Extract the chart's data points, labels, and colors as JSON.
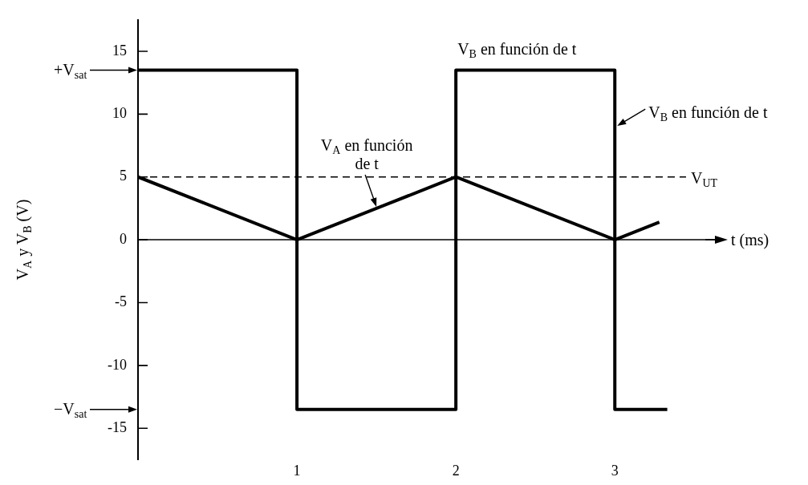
{
  "chart_data": {
    "type": "line",
    "xlabel": "t (ms)",
    "ylabel": "V$_{A}$ y V$_{B}$ (V)",
    "xlim": [
      0,
      3.65
    ],
    "xticks": [
      1,
      2,
      3
    ],
    "ylim": [
      -17.5,
      17.5
    ],
    "yticks": [
      -15,
      -10,
      -5,
      0,
      5,
      10,
      15
    ],
    "series": [
      {
        "color": "#000000",
        "x": [
          0,
          1,
          2,
          3,
          3.28
        ],
        "values": [
          5,
          0,
          5,
          0,
          1.4
        ]
      },
      {
        "type": "step",
        "color": "#000000",
        "x": [
          0,
          1,
          2,
          3,
          3.33
        ],
        "values": [
          13.5,
          -13.5,
          13.5,
          -13.5,
          -13.5
        ]
      }
    ],
    "ref_lines": [
      {
        "axis": "y",
        "value": 5,
        "label": "V$_{UT}$",
        "line_style": "dashed",
        "color": "#000000"
      }
    ],
    "annotations": [
      "+V$_{sat}$",
      "−V$_{sat}$",
      {
        "text": "V$_{B}$ en función de t",
        "x": 2,
        "y": 13.5
      },
      {
        "text": "V$_{B}$ en función de t",
        "x": 3,
        "y": 9
      },
      {
        "text": "V$_{A}$ en función de t",
        "x": 1.5,
        "y": 2.5
      }
    ]
  }
}
